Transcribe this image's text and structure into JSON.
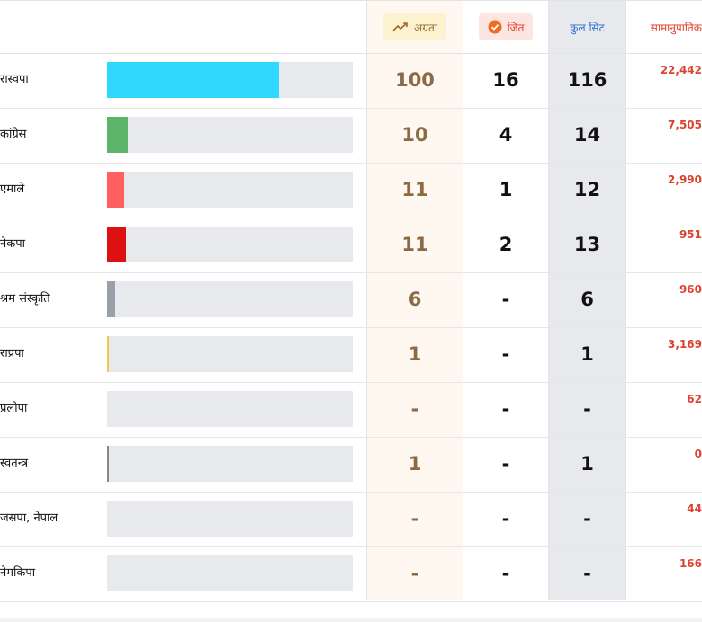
{
  "header": {
    "lead_label": "अग्रता",
    "won_label": "जित",
    "total_label": "कुल सिट",
    "proportional_label": "सामानुपातिक"
  },
  "colors": {
    "lead_column_bg": "#fff8f1",
    "total_column_bg": "#e8e9ed",
    "bar_track": "#e8e9ed"
  },
  "rows": [
    {
      "party": "रास्वपा",
      "bar_color": "#2ed8ff",
      "bar_fraction": 0.7,
      "lead": "100",
      "won": "16",
      "total": "116",
      "proportional": "22,442"
    },
    {
      "party": "कांग्रेस",
      "bar_color": "#5cb56a",
      "bar_fraction": 0.085,
      "lead": "10",
      "won": "4",
      "total": "14",
      "proportional": "7,505"
    },
    {
      "party": "एमाले",
      "bar_color": "#ff5f5f",
      "bar_fraction": 0.07,
      "lead": "11",
      "won": "1",
      "total": "12",
      "proportional": "2,990"
    },
    {
      "party": "नेकपा",
      "bar_color": "#dd1111",
      "bar_fraction": 0.077,
      "lead": "11",
      "won": "2",
      "total": "13",
      "proportional": "951"
    },
    {
      "party": "श्रम संस्कृति",
      "bar_color": "#9aa0aa",
      "bar_fraction": 0.033,
      "lead": "6",
      "won": "-",
      "total": "6",
      "proportional": "960"
    },
    {
      "party": "राप्रपा",
      "bar_color": "#f2c94c",
      "bar_fraction": 0.006,
      "lead": "1",
      "won": "-",
      "total": "1",
      "proportional": "3,169"
    },
    {
      "party": "प्रलोपा",
      "bar_color": "#cccccc",
      "bar_fraction": 0,
      "lead": "-",
      "won": "-",
      "total": "-",
      "proportional": "62"
    },
    {
      "party": "स्वतन्त्र",
      "bar_color": "#888888",
      "bar_fraction": 0.006,
      "lead": "1",
      "won": "-",
      "total": "1",
      "proportional": "0"
    },
    {
      "party": "जसपा, नेपाल",
      "bar_color": "#cccccc",
      "bar_fraction": 0,
      "lead": "-",
      "won": "-",
      "total": "-",
      "proportional": "44"
    },
    {
      "party": "नेमकिपा",
      "bar_color": "#cccccc",
      "bar_fraction": 0,
      "lead": "-",
      "won": "-",
      "total": "-",
      "proportional": "166"
    }
  ]
}
